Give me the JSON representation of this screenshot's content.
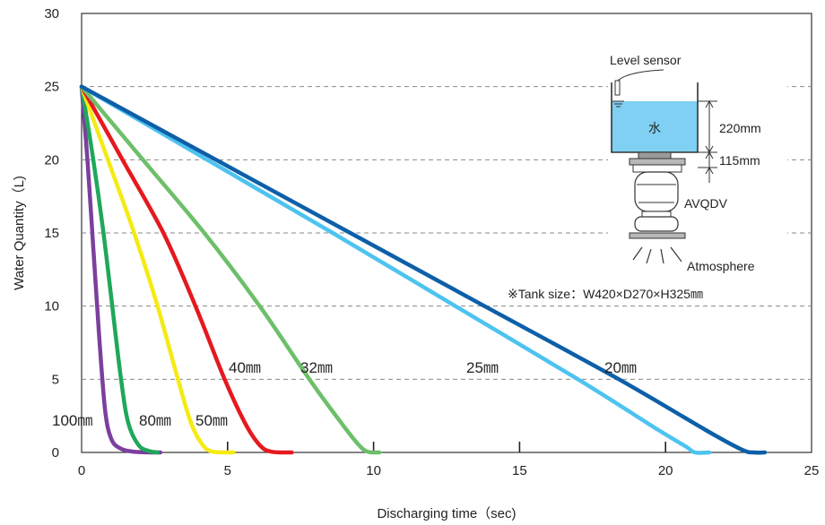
{
  "chart_data": {
    "type": "line",
    "xlabel": "Discharging time（sec)",
    "ylabel": "Water Quantity（L)",
    "xlim": [
      0,
      25
    ],
    "ylim": [
      0,
      30
    ],
    "x_ticks": [
      "0",
      "5",
      "10",
      "15",
      "20",
      "25"
    ],
    "y_ticks": [
      "0",
      "5",
      "10",
      "15",
      "20",
      "25",
      "30"
    ],
    "grid": "horizontal dashed at 5, 10, 15, 20, 25",
    "series": [
      {
        "name": "100㎜",
        "color": "#7b3f9e",
        "points": [
          [
            0,
            25
          ],
          [
            0.2,
            20
          ],
          [
            0.4,
            14
          ],
          [
            0.6,
            8
          ],
          [
            0.8,
            3
          ],
          [
            1.0,
            1
          ],
          [
            1.3,
            0.3
          ],
          [
            1.8,
            0.05
          ],
          [
            2.7,
            0
          ]
        ]
      },
      {
        "name": "80㎜",
        "color": "#1fa85a",
        "points": [
          [
            0,
            25
          ],
          [
            0.4,
            20
          ],
          [
            0.75,
            15
          ],
          [
            1.05,
            10
          ],
          [
            1.35,
            5
          ],
          [
            1.6,
            2
          ],
          [
            1.95,
            0.5
          ],
          [
            2.3,
            0.1
          ],
          [
            2.6,
            0
          ]
        ]
      },
      {
        "name": "50㎜",
        "color": "#f5ea14",
        "points": [
          [
            0,
            25
          ],
          [
            0.9,
            20
          ],
          [
            1.8,
            15
          ],
          [
            2.6,
            10
          ],
          [
            3.3,
            5
          ],
          [
            3.75,
            2
          ],
          [
            4.15,
            0.5
          ],
          [
            4.5,
            0.05
          ],
          [
            5.2,
            0
          ]
        ]
      },
      {
        "name": "40㎜",
        "color": "#e5191f",
        "points": [
          [
            0,
            25
          ],
          [
            1.4,
            20
          ],
          [
            2.8,
            15
          ],
          [
            3.9,
            10
          ],
          [
            4.9,
            5
          ],
          [
            5.6,
            2
          ],
          [
            6.1,
            0.5
          ],
          [
            6.5,
            0.05
          ],
          [
            7.2,
            0
          ]
        ]
      },
      {
        "name": "32㎜",
        "color": "#6dbf6a",
        "points": [
          [
            0,
            25
          ],
          [
            2.1,
            20
          ],
          [
            4.2,
            15
          ],
          [
            6.1,
            10
          ],
          [
            7.8,
            5
          ],
          [
            8.9,
            2
          ],
          [
            9.5,
            0.5
          ],
          [
            9.8,
            0.05
          ],
          [
            10.2,
            0
          ]
        ]
      },
      {
        "name": "25㎜",
        "color": "#4ec3ef",
        "points": [
          [
            0,
            25
          ],
          [
            4.3,
            20
          ],
          [
            8.6,
            15
          ],
          [
            12.8,
            10
          ],
          [
            17.0,
            5
          ],
          [
            19.7,
            1.6
          ],
          [
            20.7,
            0.4
          ],
          [
            21.0,
            0
          ],
          [
            21.5,
            0
          ]
        ]
      },
      {
        "name": "20㎜",
        "color": "#0d5fa8",
        "points": [
          [
            0,
            25
          ],
          [
            4.6,
            20
          ],
          [
            9.2,
            15
          ],
          [
            13.8,
            10
          ],
          [
            18.4,
            5
          ],
          [
            21.4,
            1.5
          ],
          [
            22.6,
            0.2
          ],
          [
            23.0,
            0
          ],
          [
            23.4,
            0
          ]
        ]
      }
    ],
    "annotations": {
      "tank_size": "※Tank size：W420×D270×H325㎜",
      "level_sensor": "Level sensor",
      "water": "水",
      "height_upper": "220mm",
      "height_lower": "115mm",
      "valve": "AVQDV",
      "outlet": "Atmosphere"
    }
  }
}
